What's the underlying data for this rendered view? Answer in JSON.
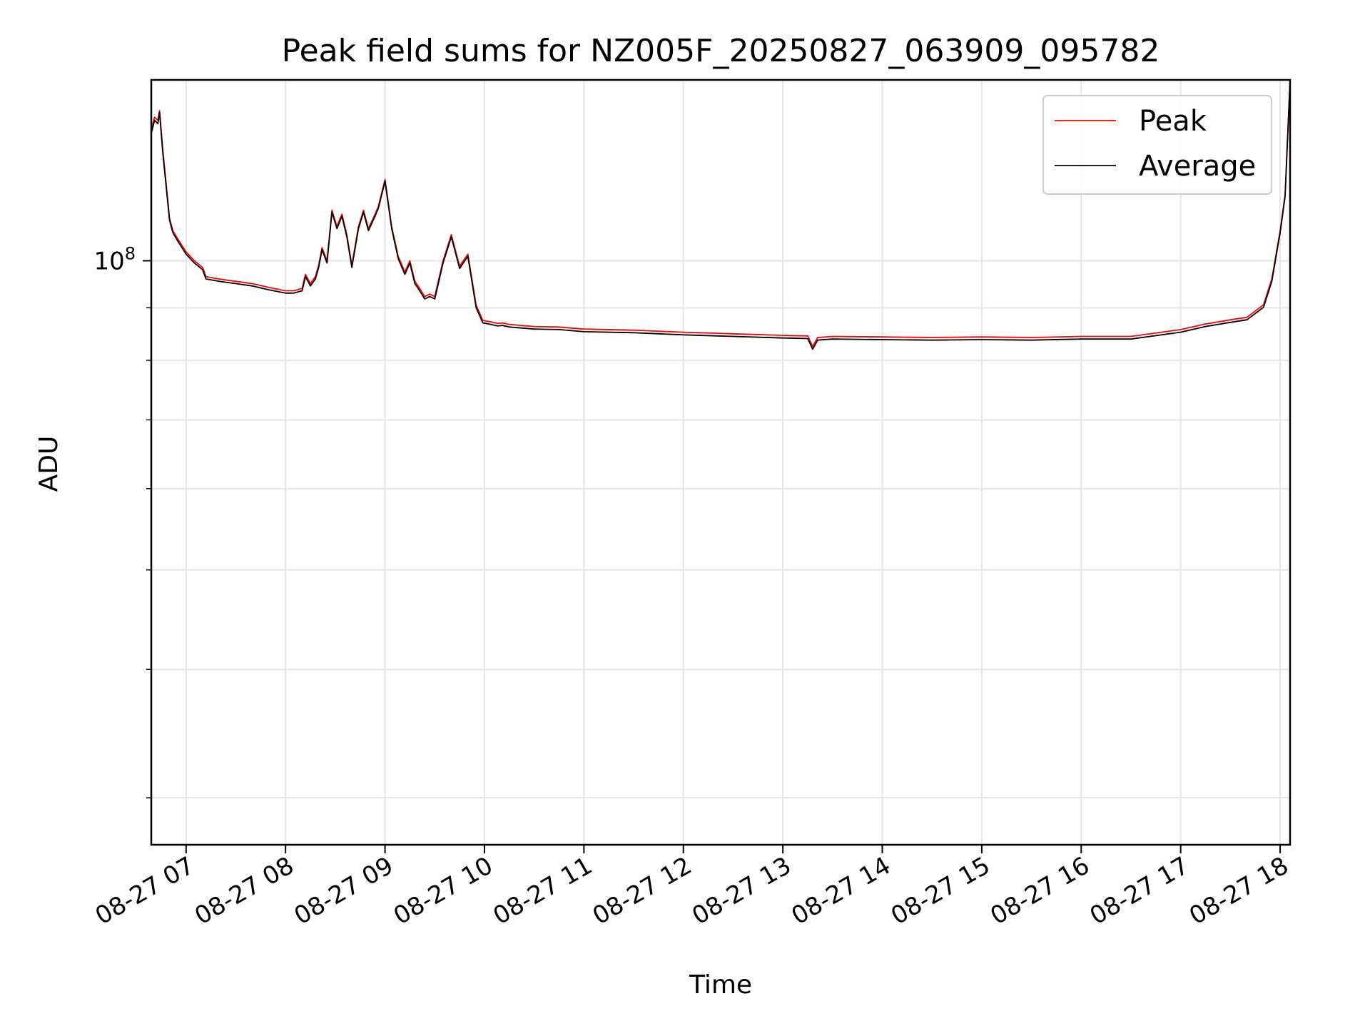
{
  "chart_data": {
    "type": "line",
    "title": "Peak field sums for NZ005F_20250827_063909_095782",
    "xlabel": "Time",
    "ylabel": "ADU",
    "y_scale": "log",
    "grid": true,
    "legend_position": "top-right",
    "xlim": [
      "2025-08-27 06:39",
      "2025-08-27 18:06"
    ],
    "ylim": [
      27000000,
      150000000
    ],
    "x_ticks": [
      "2025-08-27 07:00",
      "2025-08-27 08:00",
      "2025-08-27 09:00",
      "2025-08-27 10:00",
      "2025-08-27 11:00",
      "2025-08-27 12:00",
      "2025-08-27 13:00",
      "2025-08-27 14:00",
      "2025-08-27 15:00",
      "2025-08-27 16:00",
      "2025-08-27 17:00",
      "2025-08-27 18:00"
    ],
    "x_tick_labels": [
      "08-27 07",
      "08-27 08",
      "08-27 09",
      "08-27 10",
      "08-27 11",
      "08-27 12",
      "08-27 13",
      "08-27 14",
      "08-27 15",
      "08-27 16",
      "08-27 17",
      "08-27 18"
    ],
    "y_major_ticks": [
      100000000
    ],
    "y_major_tick_labels": [
      {
        "base": "10",
        "exp": "8"
      }
    ],
    "y_minor_ticks": [
      30000000,
      40000000,
      50000000,
      60000000,
      70000000,
      80000000,
      90000000
    ],
    "colors": {
      "peak": "#ff0000",
      "average": "#000000",
      "grid": "#e6e6e6"
    },
    "series": [
      {
        "name": "Peak",
        "color": "#ff0000",
        "x": [
          "2025-08-27 06:39",
          "2025-08-27 06:41",
          "2025-08-27 06:43",
          "2025-08-27 06:44",
          "2025-08-27 06:46",
          "2025-08-27 06:50",
          "2025-08-27 06:52",
          "2025-08-27 06:55",
          "2025-08-27 07:00",
          "2025-08-27 07:05",
          "2025-08-27 07:10",
          "2025-08-27 07:12",
          "2025-08-27 07:20",
          "2025-08-27 07:30",
          "2025-08-27 07:40",
          "2025-08-27 07:50",
          "2025-08-27 08:00",
          "2025-08-27 08:05",
          "2025-08-27 08:10",
          "2025-08-27 08:12",
          "2025-08-27 08:15",
          "2025-08-27 08:18",
          "2025-08-27 08:20",
          "2025-08-27 08:22",
          "2025-08-27 08:25",
          "2025-08-27 08:28",
          "2025-08-27 08:31",
          "2025-08-27 08:34",
          "2025-08-27 08:37",
          "2025-08-27 08:40",
          "2025-08-27 08:44",
          "2025-08-27 08:47",
          "2025-08-27 08:50",
          "2025-08-27 08:54",
          "2025-08-27 08:56",
          "2025-08-27 09:00",
          "2025-08-27 09:04",
          "2025-08-27 09:08",
          "2025-08-27 09:12",
          "2025-08-27 09:15",
          "2025-08-27 09:18",
          "2025-08-27 09:20",
          "2025-08-27 09:24",
          "2025-08-27 09:27",
          "2025-08-27 09:30",
          "2025-08-27 09:35",
          "2025-08-27 09:40",
          "2025-08-27 09:45",
          "2025-08-27 09:50",
          "2025-08-27 09:55",
          "2025-08-27 09:59",
          "2025-08-27 10:04",
          "2025-08-27 10:08",
          "2025-08-27 10:11",
          "2025-08-27 10:15",
          "2025-08-27 10:30",
          "2025-08-27 10:45",
          "2025-08-27 11:00",
          "2025-08-27 11:30",
          "2025-08-27 12:00",
          "2025-08-27 12:30",
          "2025-08-27 13:00",
          "2025-08-27 13:15",
          "2025-08-27 13:18",
          "2025-08-27 13:21",
          "2025-08-27 13:30",
          "2025-08-27 14:00",
          "2025-08-27 14:30",
          "2025-08-27 15:00",
          "2025-08-27 15:30",
          "2025-08-27 16:00",
          "2025-08-27 16:30",
          "2025-08-27 17:00",
          "2025-08-27 17:15",
          "2025-08-27 17:30",
          "2025-08-27 17:40",
          "2025-08-27 17:50",
          "2025-08-27 17:55",
          "2025-08-27 18:00",
          "2025-08-27 18:03",
          "2025-08-27 18:06"
        ],
        "y": [
          134000000,
          138000000,
          137000000,
          140000000,
          128000000,
          110000000,
          107000000,
          105000000,
          102000000,
          100000000,
          98500000,
          96500000,
          96000000,
          95500000,
          95000000,
          94200000,
          93500000,
          93500000,
          94000000,
          97000000,
          95000000,
          96500000,
          99000000,
          103000000,
          100000000,
          112000000,
          108000000,
          111000000,
          106000000,
          99000000,
          108000000,
          112000000,
          107500000,
          111000000,
          113000000,
          120000000,
          108000000,
          101000000,
          97500000,
          100000000,
          95500000,
          94500000,
          92300000,
          92800000,
          92300000,
          100000000,
          106000000,
          98800000,
          101500000,
          90500000,
          87500000,
          87200000,
          86900000,
          87000000,
          86700000,
          86300000,
          86200000,
          85800000,
          85600000,
          85200000,
          84900000,
          84600000,
          84500000,
          82500000,
          84200000,
          84400000,
          84300000,
          84200000,
          84300000,
          84200000,
          84400000,
          84400000,
          85700000,
          86800000,
          87600000,
          88100000,
          90600000,
          96000000,
          107000000,
          116000000,
          150000000
        ]
      },
      {
        "name": "Average",
        "color": "#000000",
        "x": [
          "2025-08-27 06:39",
          "2025-08-27 06:41",
          "2025-08-27 06:43",
          "2025-08-27 06:44",
          "2025-08-27 06:46",
          "2025-08-27 06:50",
          "2025-08-27 06:52",
          "2025-08-27 06:55",
          "2025-08-27 07:00",
          "2025-08-27 07:05",
          "2025-08-27 07:10",
          "2025-08-27 07:12",
          "2025-08-27 07:20",
          "2025-08-27 07:30",
          "2025-08-27 07:40",
          "2025-08-27 07:50",
          "2025-08-27 08:00",
          "2025-08-27 08:05",
          "2025-08-27 08:10",
          "2025-08-27 08:12",
          "2025-08-27 08:15",
          "2025-08-27 08:18",
          "2025-08-27 08:20",
          "2025-08-27 08:22",
          "2025-08-27 08:25",
          "2025-08-27 08:28",
          "2025-08-27 08:31",
          "2025-08-27 08:34",
          "2025-08-27 08:37",
          "2025-08-27 08:40",
          "2025-08-27 08:44",
          "2025-08-27 08:47",
          "2025-08-27 08:50",
          "2025-08-27 08:54",
          "2025-08-27 08:56",
          "2025-08-27 09:00",
          "2025-08-27 09:04",
          "2025-08-27 09:08",
          "2025-08-27 09:12",
          "2025-08-27 09:15",
          "2025-08-27 09:18",
          "2025-08-27 09:20",
          "2025-08-27 09:24",
          "2025-08-27 09:27",
          "2025-08-27 09:30",
          "2025-08-27 09:35",
          "2025-08-27 09:40",
          "2025-08-27 09:45",
          "2025-08-27 09:50",
          "2025-08-27 09:55",
          "2025-08-27 09:59",
          "2025-08-27 10:04",
          "2025-08-27 10:08",
          "2025-08-27 10:11",
          "2025-08-27 10:15",
          "2025-08-27 10:30",
          "2025-08-27 10:45",
          "2025-08-27 11:00",
          "2025-08-27 11:30",
          "2025-08-27 12:00",
          "2025-08-27 12:30",
          "2025-08-27 13:00",
          "2025-08-27 13:15",
          "2025-08-27 13:18",
          "2025-08-27 13:21",
          "2025-08-27 13:30",
          "2025-08-27 14:00",
          "2025-08-27 14:30",
          "2025-08-27 15:00",
          "2025-08-27 15:30",
          "2025-08-27 16:00",
          "2025-08-27 16:30",
          "2025-08-27 17:00",
          "2025-08-27 17:15",
          "2025-08-27 17:30",
          "2025-08-27 17:40",
          "2025-08-27 17:50",
          "2025-08-27 17:55",
          "2025-08-27 18:00",
          "2025-08-27 18:03",
          "2025-08-27 18:06"
        ],
        "y": [
          133000000,
          137000000,
          136000000,
          139500000,
          127000000,
          109500000,
          106500000,
          104500000,
          101500000,
          99500000,
          98000000,
          96000000,
          95500000,
          95000000,
          94500000,
          93700000,
          93000000,
          93000000,
          93500000,
          96500000,
          94500000,
          96000000,
          98500000,
          102500000,
          99500000,
          111500000,
          107500000,
          110500000,
          105500000,
          98500000,
          107500000,
          111500000,
          107000000,
          110500000,
          112500000,
          119500000,
          107500000,
          100500000,
          97000000,
          99500000,
          95000000,
          94000000,
          91800000,
          92300000,
          91800000,
          99500000,
          105500000,
          98300000,
          101000000,
          90000000,
          87000000,
          86700000,
          86400000,
          86500000,
          86200000,
          85800000,
          85700000,
          85300000,
          85100000,
          84700000,
          84400000,
          84100000,
          84000000,
          82000000,
          83700000,
          83900000,
          83800000,
          83700000,
          83800000,
          83700000,
          83900000,
          83900000,
          85200000,
          86300000,
          87100000,
          87600000,
          90100000,
          95500000,
          106500000,
          115500000,
          150000000
        ]
      }
    ]
  }
}
